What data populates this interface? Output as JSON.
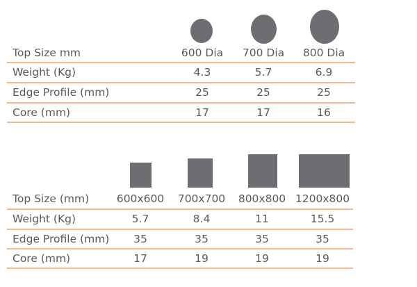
{
  "round_table": {
    "columns": [
      "600 Dia",
      "700 Dia",
      "800 Dia"
    ],
    "header_label": "Top Size mm",
    "rows": [
      {
        "label": "Weight (Kg)",
        "values": [
          "4.3",
          "5.7",
          "6.9"
        ]
      },
      {
        "label": "Edge Profile (mm)",
        "values": [
          "25",
          "25",
          "25"
        ]
      },
      {
        "label": "Core (mm)",
        "values": [
          "17",
          "17",
          "16"
        ]
      }
    ]
  },
  "rect_table": {
    "columns": [
      "600x600",
      "700x700",
      "800x800",
      "1200x800"
    ],
    "header_label": "Top Size (mm)",
    "rows": [
      {
        "label": "Weight (Kg)",
        "values": [
          "5.7",
          "8.4",
          "11",
          "15.5"
        ]
      },
      {
        "label": "Edge Profile (mm)",
        "values": [
          "35",
          "35",
          "35",
          "35"
        ]
      },
      {
        "label": "Core (mm)",
        "values": [
          "17",
          "19",
          "19",
          "19"
        ]
      }
    ]
  },
  "colors": {
    "text": "#5a5a5c",
    "shape": "#6d6e71",
    "rule": "#f8b88e"
  }
}
